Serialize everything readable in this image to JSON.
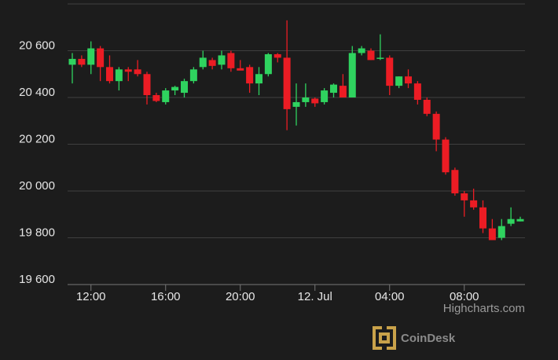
{
  "chart_data": {
    "type": "candlestick",
    "x": [
      "11:00",
      "11:30",
      "12:00",
      "12:30",
      "13:00",
      "13:30",
      "14:00",
      "14:30",
      "15:00",
      "15:30",
      "16:00",
      "16:30",
      "17:00",
      "17:30",
      "18:00",
      "18:30",
      "19:00",
      "19:30",
      "20:00",
      "20:30",
      "21:00",
      "21:30",
      "22:00",
      "22:30",
      "23:00",
      "23:30",
      "00:00",
      "00:30",
      "01:00",
      "01:30",
      "02:00",
      "02:30",
      "03:00",
      "03:30",
      "04:00",
      "04:30",
      "05:00",
      "05:30",
      "06:00",
      "06:30",
      "07:00",
      "07:30",
      "08:00",
      "08:30",
      "09:00",
      "09:30",
      "10:00",
      "10:30",
      "11:00"
    ],
    "open": [
      20540,
      20565,
      20540,
      20610,
      20530,
      20470,
      20520,
      20520,
      20500,
      20410,
      20380,
      20430,
      20420,
      20470,
      20530,
      20560,
      20540,
      20590,
      20525,
      20530,
      20460,
      20500,
      20585,
      20570,
      20360,
      20380,
      20395,
      20380,
      20420,
      20450,
      20400,
      20590,
      20600,
      20565,
      20570,
      20450,
      20490,
      20460,
      20390,
      20330,
      20220,
      20090,
      19990,
      19960,
      19930,
      19840,
      19800,
      19860,
      19870
    ],
    "high": [
      20590,
      20580,
      20640,
      20620,
      20580,
      20530,
      20530,
      20560,
      20510,
      20420,
      20440,
      20450,
      20480,
      20530,
      20600,
      20570,
      20600,
      20600,
      20560,
      20540,
      20530,
      20590,
      20590,
      20730,
      20460,
      20460,
      20400,
      20440,
      20460,
      20500,
      20620,
      20620,
      20610,
      20670,
      20580,
      20490,
      20520,
      20470,
      20400,
      20340,
      20230,
      20100,
      20000,
      20010,
      19960,
      19880,
      19880,
      19930,
      19890
    ],
    "low": [
      20460,
      20530,
      20500,
      20470,
      20460,
      20430,
      20470,
      20490,
      20370,
      20380,
      20370,
      20410,
      20400,
      20460,
      20520,
      20520,
      20520,
      20510,
      20520,
      20420,
      20410,
      20490,
      20550,
      20260,
      20280,
      20360,
      20360,
      20370,
      20400,
      20400,
      20400,
      20580,
      20560,
      20560,
      20410,
      20440,
      20440,
      20370,
      20320,
      20170,
      20070,
      19980,
      19890,
      19920,
      19820,
      19790,
      19790,
      19850,
      19870
    ],
    "close": [
      20565,
      20540,
      20610,
      20530,
      20470,
      20520,
      20510,
      20500,
      20410,
      20385,
      20430,
      20445,
      20470,
      20520,
      20570,
      20535,
      20580,
      20525,
      20515,
      20460,
      20500,
      20585,
      20570,
      20350,
      20380,
      20400,
      20375,
      20430,
      20455,
      20400,
      20590,
      20610,
      20560,
      20570,
      20450,
      20490,
      20460,
      20390,
      20330,
      20220,
      20080,
      19990,
      19960,
      19930,
      19840,
      19790,
      19850,
      19880,
      19880
    ],
    "up_color": "#2fd35f",
    "down_color": "#ec1c24",
    "ylim": [
      19600,
      20800
    ],
    "yticks": [
      {
        "value": 19600,
        "label": "19 600"
      },
      {
        "value": 19800,
        "label": "19 800"
      },
      {
        "value": 20000,
        "label": "20 000"
      },
      {
        "value": 20200,
        "label": "20 200"
      },
      {
        "value": 20400,
        "label": "20 400"
      },
      {
        "value": 20600,
        "label": "20 600"
      },
      {
        "value": 20800,
        "label": ""
      }
    ],
    "xticks": [
      "12:00",
      "16:00",
      "20:00",
      {
        "value": "00:00",
        "label": "12. Jul"
      },
      "04:00",
      "08:00"
    ],
    "grid": true,
    "credits": "Highcharts.com",
    "watermark": "CoinDesk"
  }
}
